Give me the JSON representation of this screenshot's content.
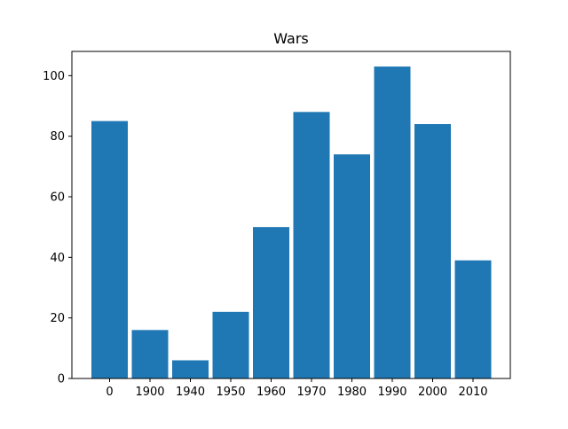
{
  "chart_data": {
    "type": "bar",
    "title": "Wars",
    "xlabel": "",
    "ylabel": "",
    "categories": [
      "0",
      "1900",
      "1940",
      "1950",
      "1960",
      "1970",
      "1980",
      "1990",
      "2000",
      "2010"
    ],
    "values": [
      85,
      16,
      6,
      22,
      50,
      88,
      74,
      103,
      84,
      39
    ],
    "ylim": [
      0,
      108
    ],
    "yticks": [
      "0",
      "20",
      "40",
      "60",
      "80",
      "100"
    ],
    "grid": false,
    "legend": "none",
    "bar_color": "#1f77b4"
  }
}
